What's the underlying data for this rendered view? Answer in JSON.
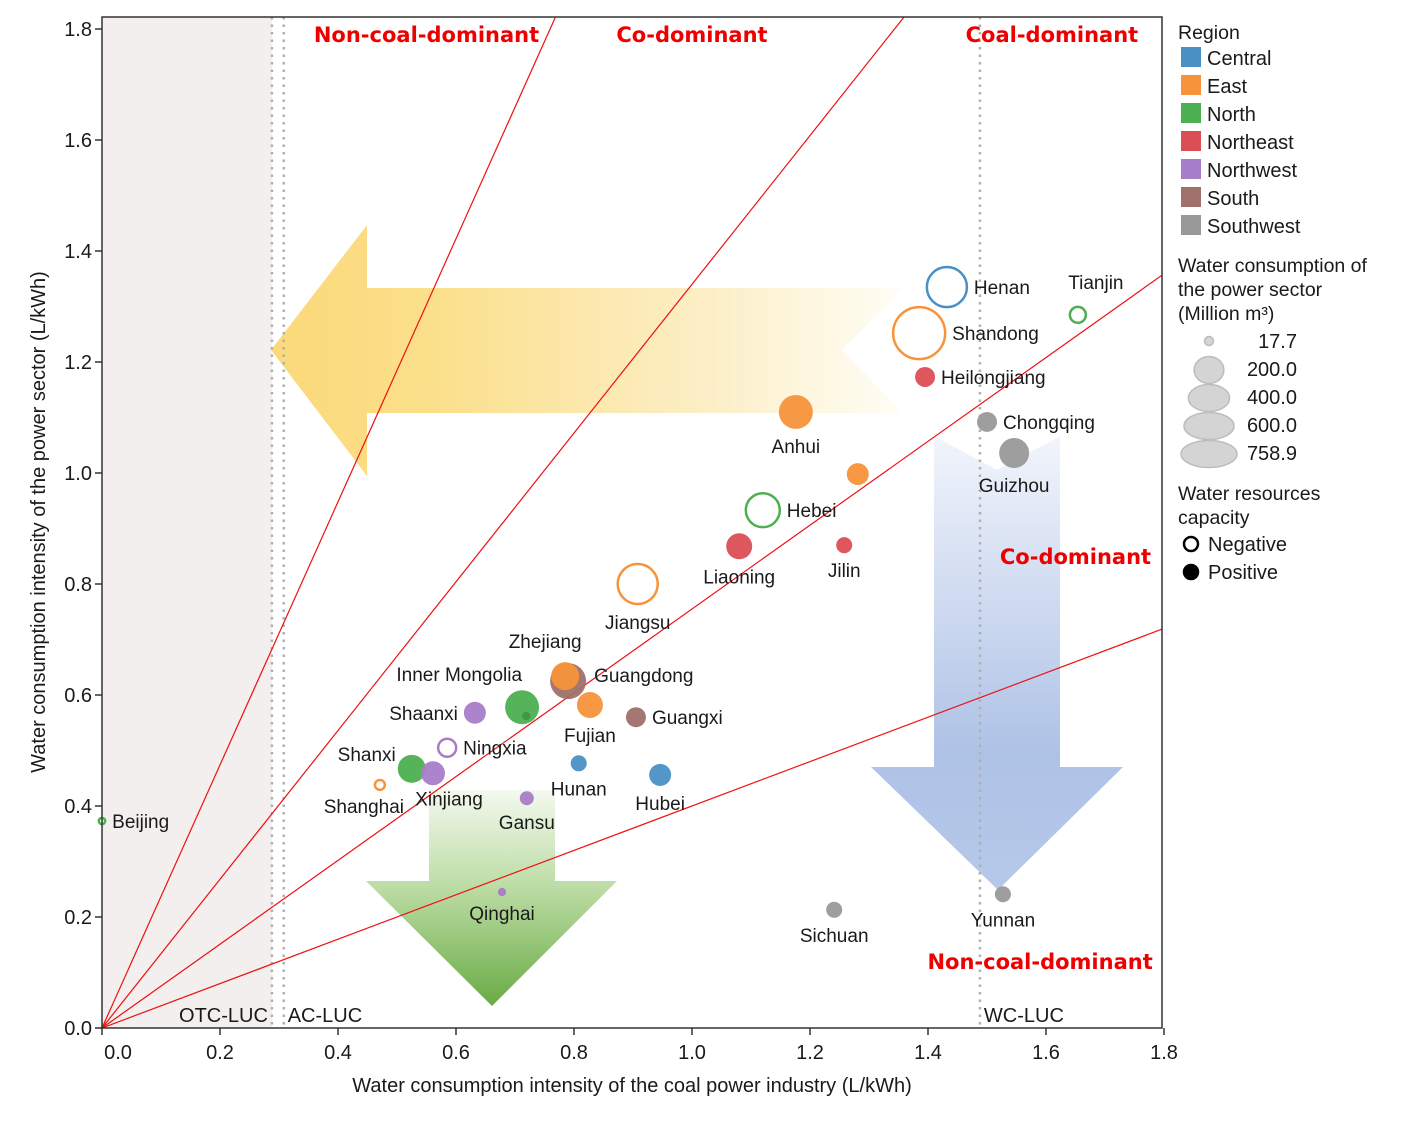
{
  "chart_data": {
    "type": "scatter",
    "title": "",
    "xlabel": "Water consumption intensity of the coal power industry (L/kWh)",
    "ylabel": "Water consumption intensity of the power sector (L/kWh)",
    "xlim": [
      0.0,
      1.8
    ],
    "ylim": [
      0.0,
      1.82
    ],
    "xticks": [
      "0.0",
      "0.2",
      "0.4",
      "0.6",
      "0.8",
      "1.0",
      "1.2",
      "1.4",
      "1.6",
      "1.8"
    ],
    "yticks": [
      "0.0",
      "0.2",
      "0.4",
      "0.6",
      "0.8",
      "1.0",
      "1.2",
      "1.4",
      "1.6",
      "1.8"
    ],
    "grid": false,
    "region_colors": {
      "Central": "#4a90c4",
      "East": "#f7943a",
      "North": "#4caf50",
      "Northeast": "#dc4e55",
      "Northwest": "#a67dc8",
      "South": "#a0706a",
      "Southwest": "#999999"
    },
    "points": [
      {
        "name": "Henan",
        "x": 1.432,
        "y": 1.335,
        "size": 460,
        "region": "Central",
        "capacity": "Negative",
        "label_pos": "right"
      },
      {
        "name": "Shandong",
        "x": 1.385,
        "y": 1.252,
        "size": 758.9,
        "region": "East",
        "capacity": "Negative",
        "label_pos": "right"
      },
      {
        "name": "Tianjin",
        "x": 1.654,
        "y": 1.285,
        "size": 84,
        "region": "North",
        "capacity": "Negative",
        "label_pos": "above"
      },
      {
        "name": "Heilongjiang",
        "x": 1.395,
        "y": 1.173,
        "size": 104,
        "region": "Northeast",
        "capacity": "Positive",
        "label_pos": "right"
      },
      {
        "name": "Chongqing",
        "x": 1.5,
        "y": 1.092,
        "size": 104,
        "region": "Southwest",
        "capacity": "Positive",
        "label_pos": "right"
      },
      {
        "name": "Guizhou",
        "x": 1.546,
        "y": 1.036,
        "size": 234,
        "region": "Southwest",
        "capacity": "Positive",
        "label_pos": "below"
      },
      {
        "name": "Anhui",
        "x": 1.176,
        "y": 1.11,
        "size": 300,
        "region": "East",
        "capacity": "Positive",
        "label_pos": "below"
      },
      {
        "name": "",
        "x": 1.281,
        "y": 0.998,
        "size": 126,
        "region": "East",
        "capacity": "Positive",
        "label_pos": "none"
      },
      {
        "name": "Hebei",
        "x": 1.12,
        "y": 0.933,
        "size": 337,
        "region": "North",
        "capacity": "Negative",
        "label_pos": "right"
      },
      {
        "name": "Liaoning",
        "x": 1.08,
        "y": 0.868,
        "size": 176,
        "region": "Northeast",
        "capacity": "Positive",
        "label_pos": "below"
      },
      {
        "name": "Jilin",
        "x": 1.258,
        "y": 0.87,
        "size": 67,
        "region": "Northeast",
        "capacity": "Positive",
        "label_pos": "below"
      },
      {
        "name": "Jiangsu",
        "x": 0.908,
        "y": 0.8,
        "size": 460,
        "region": "East",
        "capacity": "Negative",
        "label_pos": "below"
      },
      {
        "name": "Guangdong",
        "x": 0.79,
        "y": 0.625,
        "size": 337,
        "region": "South",
        "capacity": "Positive",
        "label_pos": "right"
      },
      {
        "name": "Zhejiang",
        "x": 0.785,
        "y": 0.634,
        "size": 204,
        "region": "East",
        "capacity": "Positive",
        "label_pos": "above"
      },
      {
        "name": "Inner Mongolia",
        "x": 0.712,
        "y": 0.578,
        "size": 300,
        "region": "North",
        "capacity": "Positive",
        "label_pos": "aboveleft"
      },
      {
        "name": "",
        "x": 0.719,
        "y": 0.562,
        "size": 18,
        "region": "North",
        "capacity": "Positive",
        "label_pos": "none",
        "dark": true
      },
      {
        "name": "Shaanxi",
        "x": 0.632,
        "y": 0.568,
        "size": 126,
        "region": "Northwest",
        "capacity": "Positive",
        "label_pos": "left"
      },
      {
        "name": "Fujian",
        "x": 0.827,
        "y": 0.582,
        "size": 176,
        "region": "East",
        "capacity": "Positive",
        "label_pos": "below"
      },
      {
        "name": "Guangxi",
        "x": 0.905,
        "y": 0.56,
        "size": 104,
        "region": "South",
        "capacity": "Positive",
        "label_pos": "right"
      },
      {
        "name": "Ningxia",
        "x": 0.585,
        "y": 0.505,
        "size": 104,
        "region": "Northwest",
        "capacity": "Negative",
        "label_pos": "right"
      },
      {
        "name": "Shanxi",
        "x": 0.525,
        "y": 0.467,
        "size": 204,
        "region": "North",
        "capacity": "Positive",
        "label_pos": "aboveleft"
      },
      {
        "name": "Xinjiang",
        "x": 0.561,
        "y": 0.459,
        "size": 150,
        "region": "Northwest",
        "capacity": "Positive",
        "label_pos": "below"
      },
      {
        "name": "Shanghai",
        "x": 0.471,
        "y": 0.438,
        "size": 37,
        "region": "East",
        "capacity": "Negative",
        "label_pos": "belowleft"
      },
      {
        "name": "Hunan",
        "x": 0.808,
        "y": 0.477,
        "size": 67,
        "region": "Central",
        "capacity": "Positive",
        "label_pos": "below"
      },
      {
        "name": "Hubei",
        "x": 0.946,
        "y": 0.456,
        "size": 126,
        "region": "Central",
        "capacity": "Positive",
        "label_pos": "below"
      },
      {
        "name": "Gansu",
        "x": 0.72,
        "y": 0.414,
        "size": 51,
        "region": "Northwest",
        "capacity": "Positive",
        "label_pos": "below"
      },
      {
        "name": "Qinghai",
        "x": 0.678,
        "y": 0.245,
        "size": 17.7,
        "region": "Northwest",
        "capacity": "Positive",
        "label_pos": "below"
      },
      {
        "name": "Sichuan",
        "x": 1.241,
        "y": 0.213,
        "size": 67,
        "region": "Southwest",
        "capacity": "Positive",
        "label_pos": "below"
      },
      {
        "name": "Yunnan",
        "x": 1.527,
        "y": 0.241,
        "size": 67,
        "region": "Southwest",
        "capacity": "Positive",
        "label_pos": "below"
      },
      {
        "name": "Beijing",
        "x": 0.0,
        "y": 0.373,
        "size": 18,
        "region": "North",
        "capacity": "Negative",
        "label_pos": "right"
      }
    ],
    "ratio_lines": [
      {
        "slope": 2.37
      },
      {
        "slope": 1.34
      },
      {
        "slope": 0.755
      },
      {
        "slope": 0.4
      }
    ],
    "threshold_lines": [
      {
        "name": "OTC-LUC",
        "x": 0.288
      },
      {
        "name": "AC-LUC",
        "x": 0.308
      },
      {
        "name": "WC-LUC",
        "x": 1.488
      }
    ],
    "shaded_region": {
      "x_from": 0.0,
      "x_to": 0.288,
      "color": "#f3efee"
    },
    "zone_labels": [
      {
        "text": "Non-coal-dominant",
        "x": 0.55,
        "y": 1.78
      },
      {
        "text": "Co-dominant",
        "x": 1.0,
        "y": 1.78
      },
      {
        "text": "Coal-dominant",
        "x": 1.61,
        "y": 1.78
      },
      {
        "text": "Co-dominant",
        "x": 1.65,
        "y": 0.84
      },
      {
        "text": "Non-coal-dominant",
        "x": 1.59,
        "y": 0.11
      }
    ],
    "arrows": [
      {
        "name": "yellow-arrow",
        "direction": "left",
        "color": "#fbd97a"
      },
      {
        "name": "blue-arrow",
        "direction": "down",
        "color": "#a9bfe4"
      },
      {
        "name": "green-arrow",
        "direction": "down",
        "color": "#6aab45"
      }
    ],
    "legend": {
      "placement": "right",
      "region_title": "Region",
      "regions": [
        "Central",
        "East",
        "North",
        "Northeast",
        "Northwest",
        "South",
        "Southwest"
      ],
      "size_title_lines": [
        "Water consumption of",
        " the power sector",
        " (Million m³)"
      ],
      "sizes": [
        {
          "value": 17.7,
          "label": "17.7"
        },
        {
          "value": 200.0,
          "label": "200.0"
        },
        {
          "value": 400.0,
          "label": "400.0"
        },
        {
          "value": 600.0,
          "label": "600.0"
        },
        {
          "value": 758.9,
          "label": "758.9"
        }
      ],
      "capacity_title_lines": [
        "Water resources",
        "capacity"
      ],
      "capacity": [
        {
          "label": "Negative",
          "filled": false
        },
        {
          "label": "Positive",
          "filled": true
        }
      ]
    }
  }
}
